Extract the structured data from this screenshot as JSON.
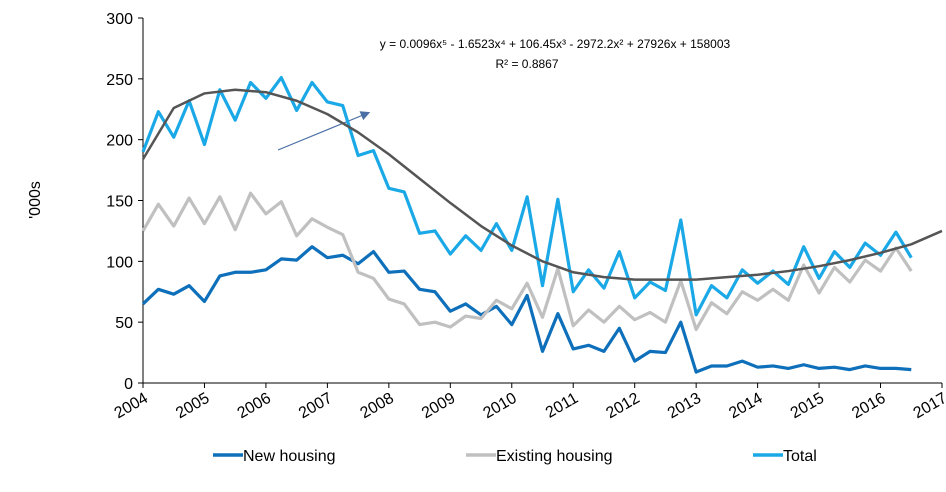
{
  "chart_data": {
    "type": "line",
    "y_label": "'000s",
    "equation": "y = 0.0096x⁵ - 1.6523x⁴ + 106.45x³ - 2972.2x² + 27926x + 158003",
    "r_squared": "R² = 0.8867",
    "x_start": 2004,
    "x_step": 0.25,
    "xlim": [
      2004,
      2017
    ],
    "xticks": [
      2004,
      2005,
      2006,
      2007,
      2008,
      2009,
      2010,
      2011,
      2012,
      2013,
      2014,
      2015,
      2016,
      2017
    ],
    "ylim": [
      0,
      300
    ],
    "yticks": [
      0,
      50,
      100,
      150,
      200,
      250,
      300
    ],
    "series": [
      {
        "name": "New housing",
        "color": "#0e6fba",
        "values": [
          65,
          77,
          73,
          80,
          67,
          88,
          91,
          91,
          93,
          102,
          101,
          112,
          103,
          105,
          98,
          108,
          91,
          92,
          77,
          75,
          59,
          65,
          56,
          63,
          48,
          72,
          26,
          57,
          28,
          31,
          26,
          45,
          18,
          26,
          25,
          50,
          9,
          14,
          14,
          18,
          13,
          14,
          12,
          15,
          12,
          13,
          11,
          14,
          12,
          12,
          11
        ]
      },
      {
        "name": "Existing housing",
        "color": "#c0c0c0",
        "values": [
          125,
          147,
          129,
          152,
          131,
          153,
          126,
          156,
          139,
          149,
          121,
          135,
          128,
          122,
          91,
          86,
          69,
          65,
          48,
          50,
          46,
          55,
          53,
          68,
          61,
          82,
          54,
          94,
          47,
          60,
          50,
          63,
          52,
          58,
          50,
          84,
          44,
          66,
          57,
          75,
          68,
          77,
          68,
          97,
          74,
          95,
          83,
          101,
          92,
          111,
          92
        ]
      },
      {
        "name": "Total",
        "color": "#1aa9e6",
        "values": [
          190,
          223,
          202,
          232,
          196,
          241,
          216,
          247,
          234,
          251,
          224,
          247,
          231,
          228,
          187,
          191,
          160,
          157,
          123,
          125,
          106,
          121,
          109,
          131,
          109,
          153,
          80,
          151,
          75,
          93,
          78,
          108,
          70,
          83,
          76,
          134,
          56,
          80,
          70,
          93,
          82,
          92,
          81,
          112,
          86,
          108,
          95,
          115,
          105,
          124,
          103
        ]
      }
    ],
    "trendline": {
      "color": "#555555",
      "x": [
        2004,
        2004.5,
        2005,
        2005.5,
        2006,
        2006.5,
        2007,
        2007.5,
        2008,
        2008.5,
        2009,
        2009.5,
        2010,
        2010.5,
        2011,
        2011.5,
        2012,
        2012.5,
        2013,
        2013.5,
        2014,
        2014.5,
        2015,
        2015.5,
        2016,
        2016.5,
        2017
      ],
      "values": [
        184,
        226,
        238,
        241,
        239,
        232,
        221,
        206,
        188,
        168,
        148,
        129,
        113,
        100,
        91,
        87,
        85,
        85,
        85,
        87,
        89,
        92,
        96,
        101,
        107,
        114,
        125
      ]
    }
  }
}
